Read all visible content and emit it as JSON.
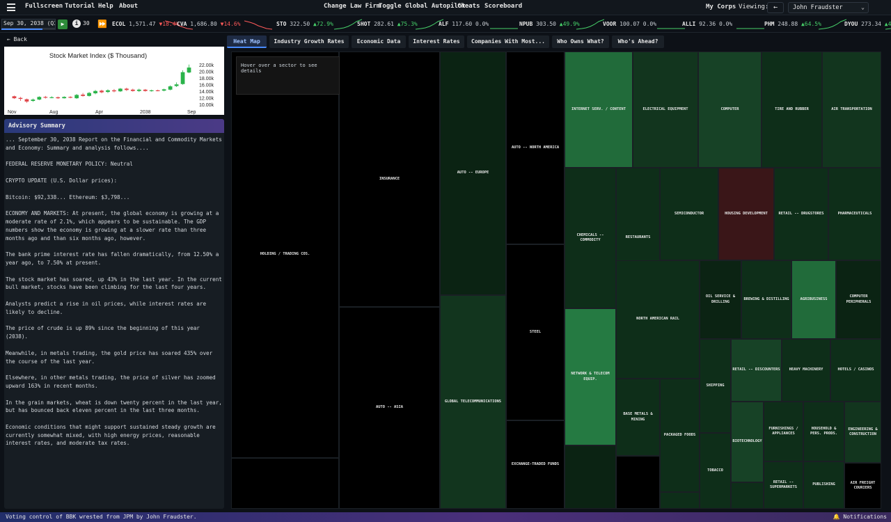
{
  "menu": {
    "items": [
      "Fullscreen",
      "Tutorial",
      "Help",
      "About"
    ],
    "center_items": [
      "Change Law Firm",
      "Toggle Global Autopilot",
      "Cheats",
      "Scoreboard"
    ],
    "my_corps": "My Corps",
    "viewing_label": "Viewing:",
    "back_arrow": "←",
    "viewing_value": "John Fraudster",
    "chevron": "⌄"
  },
  "ticker": {
    "date": "Sep 30, 2038 (Q3)",
    "date_progress": 0.75,
    "play": "▶",
    "speed_icon": "i",
    "speed": "30",
    "ff": "⏩",
    "items": [
      {
        "sym": "ECOL",
        "px": "1,571.47",
        "chg": "▼18.4%",
        "dir": "down"
      },
      {
        "sym": "CVA",
        "px": "1,686.80",
        "chg": "▼14.6%",
        "dir": "down"
      },
      {
        "sym": "STO",
        "px": "322.50",
        "chg": "▲72.9%",
        "dir": "up"
      },
      {
        "sym": "SHOT",
        "px": "282.61",
        "chg": "▲75.3%",
        "dir": "up"
      },
      {
        "sym": "ALF",
        "px": "117.60",
        "chg": "0.0%",
        "dir": "flat"
      },
      {
        "sym": "NPUB",
        "px": "303.50",
        "chg": "▲49.9%",
        "dir": "up"
      },
      {
        "sym": "VOOR",
        "px": "100.07",
        "chg": "0.0%",
        "dir": "flat"
      },
      {
        "sym": "ALLI",
        "px": "92.36",
        "chg": "0.0%",
        "dir": "flat"
      },
      {
        "sym": "PHM",
        "px": "248.88",
        "chg": "▲64.5%",
        "dir": "up"
      },
      {
        "sym": "DYOU",
        "px": "273.34",
        "chg": "▲4",
        "dir": "up"
      }
    ]
  },
  "left": {
    "back": "← Back",
    "advisory_title": "Advisory Summary",
    "paragraphs": [
      "... September 30, 2038 Report on the Financial and Commodity Markets and Economy: Summary and analysis follows....",
      "FEDERAL RESERVE MONETARY POLICY: Neutral",
      "CRYPTO UPDATE (U.S. Dollar prices):",
      "Bitcoin: $92,338... Ethereum: $3,798...",
      "ECONOMY AND MARKETS: At present, the global economy is growing at a moderate rate of 2.1%, which appears to be sustainable. The GDP numbers show the economy is growing at a slower rate than three months ago and than six months ago, however.",
      "The bank prime interest rate has fallen dramatically, from 12.50% a year ago, to 7.50% at present.",
      "The stock market has soared, up 43% in the last year. In the current bull market, stocks have been climbing for the last four years.",
      "Analysts predict a rise in oil prices, while interest rates are likely to decline.",
      "The price of crude is up 89% since the beginning of this year (2038).",
      "Meanwhile, in metals trading, the gold price has soared 435% over the course of the last year.",
      "Elsewhere, in other metals trading, the price of silver has zoomed upward 163% in recent months.",
      "In the grain markets, wheat is down twenty percent in the last year, but has bounced back eleven percent in the last three months.",
      "Economic conditions that might support sustained steady growth are currently somewhat mixed, with high energy prices, reasonable interest rates, and moderate tax rates."
    ]
  },
  "chart_data": {
    "type": "candlestick",
    "title": "Stock Market Index ($ Thousand)",
    "x_ticks": [
      "Nov",
      "Aug",
      "Apr",
      "2038",
      "Sep"
    ],
    "y_ticks": [
      "22.00k",
      "20.00k",
      "18.00k",
      "16.00k",
      "14.00k",
      "12.00k",
      "10.00k"
    ],
    "ylim": [
      9.5,
      23
    ],
    "candles": [
      {
        "o": 12.6,
        "c": 12.0,
        "h": 12.8,
        "l": 11.8
      },
      {
        "o": 12.1,
        "c": 11.8,
        "h": 12.4,
        "l": 11.2
      },
      {
        "o": 11.7,
        "c": 11.0,
        "h": 11.9,
        "l": 10.6
      },
      {
        "o": 11.2,
        "c": 11.6,
        "h": 11.9,
        "l": 10.9
      },
      {
        "o": 11.6,
        "c": 12.4,
        "h": 12.6,
        "l": 11.4
      },
      {
        "o": 12.4,
        "c": 12.2,
        "h": 12.7,
        "l": 11.9
      },
      {
        "o": 12.2,
        "c": 12.3,
        "h": 12.6,
        "l": 12.0
      },
      {
        "o": 12.3,
        "c": 12.0,
        "h": 12.5,
        "l": 11.8
      },
      {
        "o": 12.0,
        "c": 12.4,
        "h": 12.6,
        "l": 11.9
      },
      {
        "o": 12.4,
        "c": 12.2,
        "h": 12.6,
        "l": 12.0
      },
      {
        "o": 12.0,
        "c": 13.0,
        "h": 13.3,
        "l": 11.8
      },
      {
        "o": 13.1,
        "c": 12.7,
        "h": 13.6,
        "l": 12.5
      },
      {
        "o": 12.7,
        "c": 13.6,
        "h": 13.9,
        "l": 12.5
      },
      {
        "o": 13.5,
        "c": 14.2,
        "h": 14.5,
        "l": 13.2
      },
      {
        "o": 14.3,
        "c": 13.8,
        "h": 14.6,
        "l": 13.5
      },
      {
        "o": 13.9,
        "c": 14.4,
        "h": 14.7,
        "l": 13.6
      },
      {
        "o": 14.4,
        "c": 14.1,
        "h": 14.8,
        "l": 13.8
      },
      {
        "o": 14.1,
        "c": 14.9,
        "h": 15.1,
        "l": 13.9
      },
      {
        "o": 14.9,
        "c": 14.5,
        "h": 15.2,
        "l": 14.2
      },
      {
        "o": 14.6,
        "c": 14.2,
        "h": 14.9,
        "l": 14.0
      },
      {
        "o": 14.2,
        "c": 14.6,
        "h": 14.9,
        "l": 13.9
      },
      {
        "o": 14.6,
        "c": 14.2,
        "h": 14.8,
        "l": 14.0
      },
      {
        "o": 14.2,
        "c": 14.4,
        "h": 14.6,
        "l": 14.0
      },
      {
        "o": 14.4,
        "c": 14.3,
        "h": 14.6,
        "l": 14.1
      },
      {
        "o": 14.3,
        "c": 14.7,
        "h": 14.9,
        "l": 14.1
      },
      {
        "o": 14.6,
        "c": 15.6,
        "h": 15.9,
        "l": 14.4
      },
      {
        "o": 15.7,
        "c": 16.2,
        "h": 16.8,
        "l": 15.4
      },
      {
        "o": 16.3,
        "c": 19.9,
        "h": 20.5,
        "l": 16.1
      },
      {
        "o": 19.8,
        "c": 21.3,
        "h": 22.2,
        "l": 19.6
      }
    ]
  },
  "tabs": [
    {
      "label": "Heat Map",
      "active": true
    },
    {
      "label": "Industry Growth Rates",
      "active": false
    },
    {
      "label": "Economic Data",
      "active": false
    },
    {
      "label": "Interest Rates",
      "active": false
    },
    {
      "label": "Companies With Most...",
      "active": false
    },
    {
      "label": "Who Owns What?",
      "active": false
    },
    {
      "label": "Who's Ahead?",
      "active": false
    }
  ],
  "heatmap": {
    "hover_hint": "Hover over a sector to see details",
    "colors": {
      "black": "#000000",
      "g1": "#0b2313",
      "g2": "#0e2e19",
      "g3": "#12351e",
      "g4": "#174226",
      "g5": "#1d5630",
      "g6": "#216b3a",
      "g7": "#257a42",
      "red": "#3a1618"
    },
    "sectors": [
      "HOLDING / TRADING COS.",
      "INSURANCE",
      "AUTO -- ASIA",
      "AUTO -- EUROPE",
      "GLOBAL TELECOMMUNICATIONS",
      "AUTO -- NORTH AMERICA",
      "STEEL",
      "EXCHANGE-TRADED FUNDS",
      "INTERNET SERV. / CONTENT",
      "ELECTRICAL EQUIPMENT",
      "COMPUTER",
      "TIRE AND RUBBER",
      "AIR TRANSPORTATION",
      "CHEMICALS -- COMMODITY",
      "RESTAURANTS",
      "SEMICONDUCTOR",
      "HOUSING DEVELOPMENT",
      "RETAIL -- DRUGSTORES",
      "PHARMACEUTICALS",
      "NORTH AMERICAN RAIL",
      "OIL SERVICE & DRILLING",
      "BREWING & DISTILLING",
      "AGRIBUSINESS",
      "COMPUTER PERIPHERALS",
      "NETWORK & TELECOM EQUIP.",
      "BASE METALS & MINING",
      "SHIPPING",
      "RETAIL -- DISCOUNTERS",
      "HEAVY MACHINERY",
      "HOTELS / CASINOS",
      "PACKAGED FOODS",
      "BIOTECHNOLOGY",
      "FURNISHINGS / APPLIANCES",
      "HOUSEHOLD & PERS. PRODS.",
      "ENGINEERING & CONSTRUCTION",
      "TOBACCO",
      "RETAIL -- SUPERMARKETS",
      "PUBLISHING",
      "AIR FREIGHT COURIERS"
    ]
  },
  "status": {
    "message": "Voting control of BBK wrested from JPM by John Fraudster.",
    "notifications": "🔔 Notifications"
  }
}
